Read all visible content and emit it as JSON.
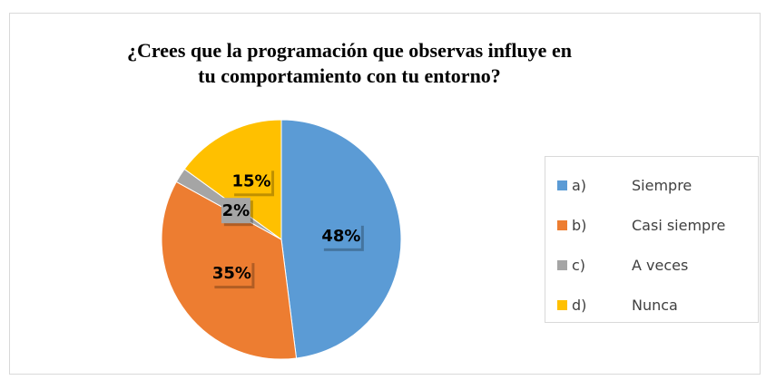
{
  "chart_data": {
    "type": "pie",
    "title": "¿Crees que la programación que observas influye en tu comportamiento con tu entorno?",
    "categories": [
      "a) Siempre",
      "b) Casi siempre",
      "c) A veces",
      "d) Nunca"
    ],
    "values": [
      48,
      35,
      2,
      15
    ],
    "value_labels": [
      "48%",
      "35%",
      "2%",
      "15%"
    ],
    "colors": [
      "#5b9bd5",
      "#ed7d31",
      "#a5a5a5",
      "#ffc000"
    ],
    "legend": "right"
  }
}
